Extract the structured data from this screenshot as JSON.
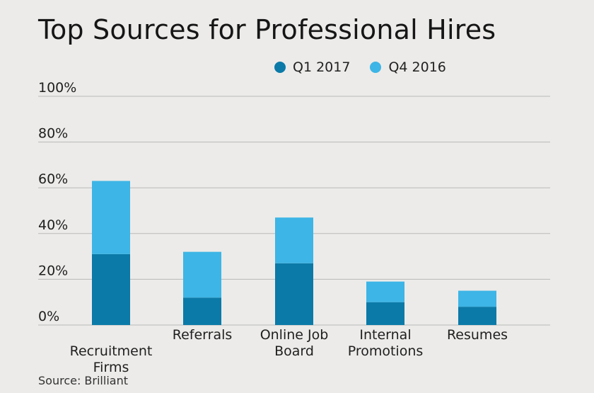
{
  "chart_data": {
    "type": "bar",
    "stacked": true,
    "title": "Top Sources for Professional Hires",
    "categories": [
      [
        "Recruitment",
        "Firms"
      ],
      [
        "Referrals"
      ],
      [
        "Online Job",
        "Board"
      ],
      [
        "Internal",
        "Promotions"
      ],
      [
        "Resumes"
      ]
    ],
    "series": [
      {
        "name": "Q1 2017",
        "color": "#0b7aa8",
        "values": [
          31,
          12,
          27,
          10,
          8
        ]
      },
      {
        "name": "Q4 2016",
        "color": "#3db5e6",
        "values": [
          32,
          20,
          20,
          9,
          7
        ]
      }
    ],
    "ylim": [
      0,
      100
    ],
    "yticks": [
      0,
      20,
      40,
      60,
      80,
      100
    ],
    "ytick_labels": [
      "0%",
      "20%",
      "40%",
      "60%",
      "80%",
      "100%"
    ],
    "grid": true,
    "legend_position": "top"
  },
  "source_text": "Source: Brilliant"
}
